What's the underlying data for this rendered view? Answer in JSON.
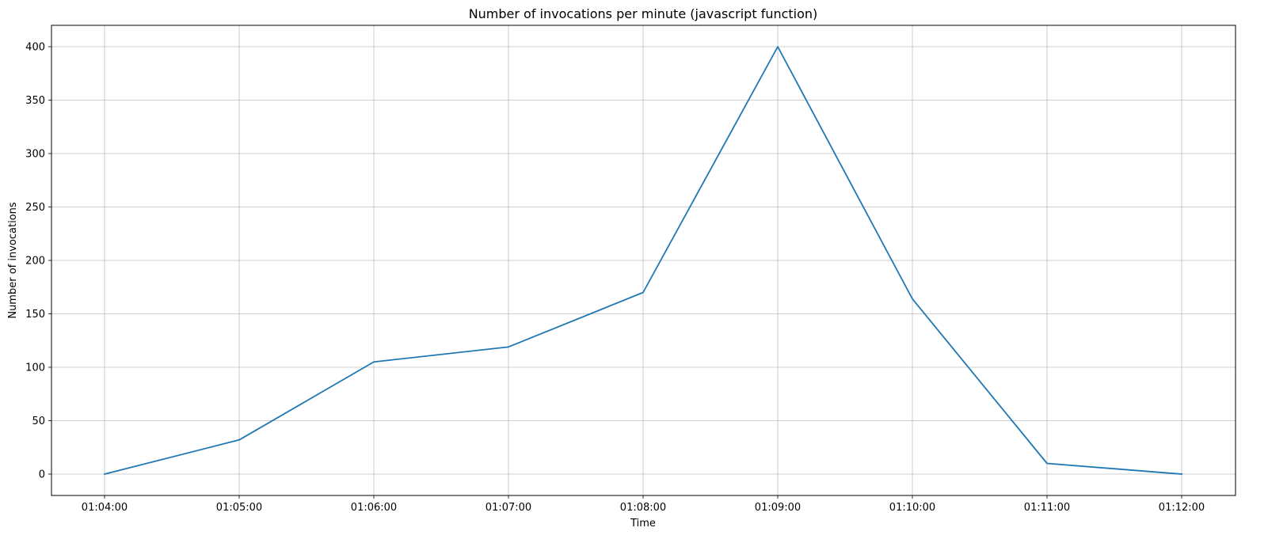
{
  "chart_data": {
    "type": "line",
    "title": "Number of invocations per minute (javascript function)",
    "xlabel": "Time",
    "ylabel": "Number of invocations",
    "x": [
      "01:04:00",
      "01:05:00",
      "01:06:00",
      "01:07:00",
      "01:08:00",
      "01:09:00",
      "01:10:00",
      "01:11:00",
      "01:12:00"
    ],
    "series": [
      {
        "values": [
          0,
          32,
          105,
          119,
          170,
          400,
          164,
          10,
          0
        ],
        "color": "#1f77b4"
      }
    ],
    "yticks": [
      0,
      50,
      100,
      150,
      200,
      250,
      300,
      350,
      400
    ],
    "ylim": [
      -20,
      420
    ],
    "grid": true
  }
}
